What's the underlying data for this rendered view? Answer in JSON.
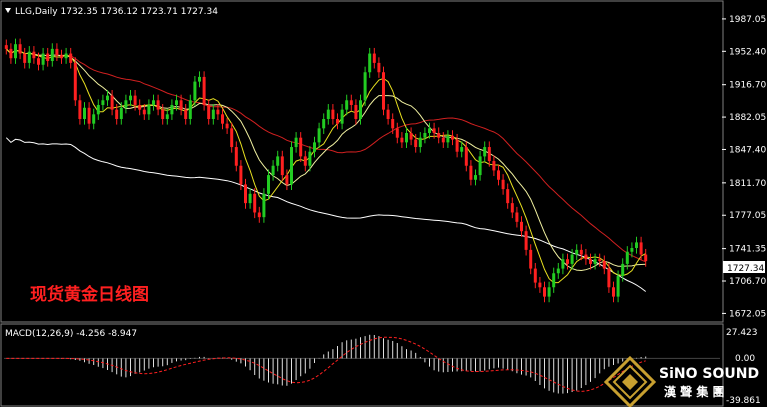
{
  "header": {
    "symbol_line": "LLG,Daily  1732.35 1736.12 1723.71 1727.34"
  },
  "main_panel": {
    "chart_label": "现货黄金日线图",
    "price_labels": [
      "1987.05",
      "1952.40",
      "1916.70",
      "1882.05",
      "1847.40",
      "1811.70",
      "1777.05",
      "1741.35",
      "1706.70",
      "1672.05"
    ],
    "current_price": "1727.34"
  },
  "macd_panel": {
    "title": "MACD(12,26,9) -4.256 -8.947",
    "scale_labels": [
      "27.423",
      "0.00",
      "-39.861"
    ]
  },
  "watermark": {
    "brand": "SiNO SOUND",
    "brand_cn": "漢 聲 集 團"
  },
  "colors": {
    "background": "#000000",
    "bull_candle": "#22cc22",
    "bear_candle": "#ff2020",
    "ma_slow": "#ffffff",
    "ma_mid": "#d02020",
    "ma_fast1": "#f0f0a0",
    "ma_fast2": "#e8e020",
    "chart_label": "#ff2020",
    "macd_hist": "#e0e0e0",
    "macd_signal": "#ff2020",
    "brand_gold": "#c8a030"
  },
  "chart_data": {
    "type": "candlestick",
    "symbol": "LLG",
    "timeframe": "Daily",
    "ohlc_last": {
      "open": 1732.35,
      "high": 1736.12,
      "low": 1723.71,
      "close": 1727.34
    },
    "y_ticks": [
      1987.05,
      1952.4,
      1916.7,
      1882.05,
      1847.4,
      1811.7,
      1777.05,
      1741.35,
      1706.7,
      1672.05
    ],
    "ylim": [
      1665,
      2003
    ],
    "close": [
      1955,
      1945,
      1960,
      1950,
      1940,
      1952,
      1945,
      1938,
      1950,
      1942,
      1955,
      1948,
      1945,
      1950,
      1940,
      1900,
      1880,
      1892,
      1875,
      1885,
      1895,
      1900,
      1905,
      1890,
      1880,
      1892,
      1900,
      1905,
      1895,
      1890,
      1885,
      1895,
      1900,
      1890,
      1880,
      1885,
      1895,
      1900,
      1890,
      1880,
      1900,
      1920,
      1925,
      1895,
      1880,
      1890,
      1885,
      1875,
      1870,
      1850,
      1830,
      1810,
      1790,
      1800,
      1780,
      1775,
      1800,
      1820,
      1830,
      1840,
      1820,
      1810,
      1850,
      1860,
      1840,
      1830,
      1845,
      1855,
      1870,
      1880,
      1890,
      1880,
      1875,
      1890,
      1900,
      1895,
      1880,
      1900,
      1930,
      1950,
      1940,
      1930,
      1890,
      1880,
      1870,
      1860,
      1855,
      1865,
      1858,
      1850,
      1860,
      1865,
      1870,
      1865,
      1860,
      1855,
      1862,
      1858,
      1845,
      1850,
      1830,
      1815,
      1820,
      1840,
      1850,
      1835,
      1825,
      1815,
      1805,
      1790,
      1780,
      1770,
      1760,
      1740,
      1720,
      1705,
      1700,
      1690,
      1700,
      1715,
      1720,
      1730,
      1725,
      1735,
      1740,
      1735,
      1730,
      1725,
      1730,
      1728,
      1720,
      1700,
      1690,
      1712,
      1725,
      1738,
      1742,
      1748,
      1735,
      1728
    ],
    "macd_ylim": [
      -39.861,
      27.423
    ]
  }
}
